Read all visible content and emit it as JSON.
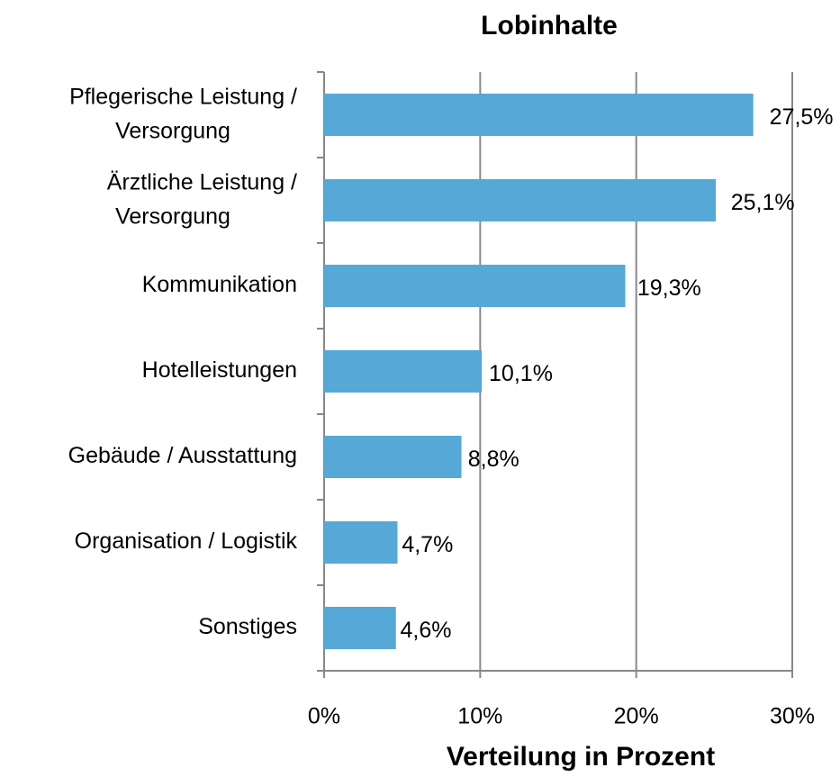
{
  "chart_data": {
    "type": "hbar",
    "title": "Lobinhalte",
    "xlabel": "Verteilung in Prozent",
    "categories": [
      "Pflegerische Leistung / Versorgung",
      "Ärztliche Leistung / Versorgung",
      "Kommunikation",
      "Hotelleistungen",
      "Gebäude / Ausstattung",
      "Organisation / Logistik",
      "Sonstiges"
    ],
    "values": [
      27.5,
      25.1,
      19.3,
      10.1,
      8.8,
      4.7,
      4.6
    ],
    "value_labels": [
      "27,5%",
      "25,1%",
      "19,3%",
      "10,1%",
      "8,8%",
      "4,7%",
      "4,6%"
    ],
    "color": "#56a8d6",
    "xlim": [
      0,
      30
    ],
    "xticks": [
      {
        "value": 0,
        "label": "0%"
      },
      {
        "value": 10,
        "label": "10%"
      },
      {
        "value": 20,
        "label": "20%"
      },
      {
        "value": 30,
        "label": "30%"
      }
    ],
    "grid": true
  }
}
